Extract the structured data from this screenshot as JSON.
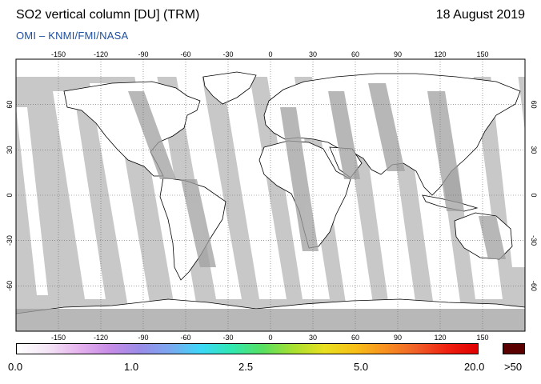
{
  "header": {
    "title": "SO2 vertical column [DU] (TRM)",
    "date": "18 August 2019",
    "credit": "OMI  –  KNMI/FMI/NASA"
  },
  "map": {
    "projection": "equirectangular",
    "lon_range": [
      -180,
      180
    ],
    "lat_range": [
      -90,
      90
    ],
    "lon_ticks": [
      "-150",
      "-120",
      "-90",
      "-60",
      "-30",
      "0",
      "30",
      "60",
      "90",
      "120",
      "150"
    ],
    "lat_ticks": [
      "60",
      "30",
      "0",
      "-30",
      "-60"
    ],
    "graticule": "dotted",
    "colors": {
      "ocean_no_data": "#c8c8c8",
      "swath_valid": "#ffffff",
      "land_no_data": "#a0a0a0",
      "polar_no_data": "#a8a8a8",
      "coastline": "#000000"
    }
  },
  "colorbar": {
    "labels": [
      "0.0",
      "1.0",
      "2.5",
      "5.0",
      "20.0",
      ">50"
    ],
    "overflow_color": "#5a0000",
    "gradient_colors": [
      "#ffffff",
      "#f4e6f6",
      "#e6b4ee",
      "#c88ce6",
      "#9a8ce8",
      "#7aa8f0",
      "#3cd8f8",
      "#30e8b0",
      "#58e060",
      "#a8e030",
      "#e8e020",
      "#f8c018",
      "#f89020",
      "#f06028",
      "#f02010",
      "#e00000"
    ]
  }
}
